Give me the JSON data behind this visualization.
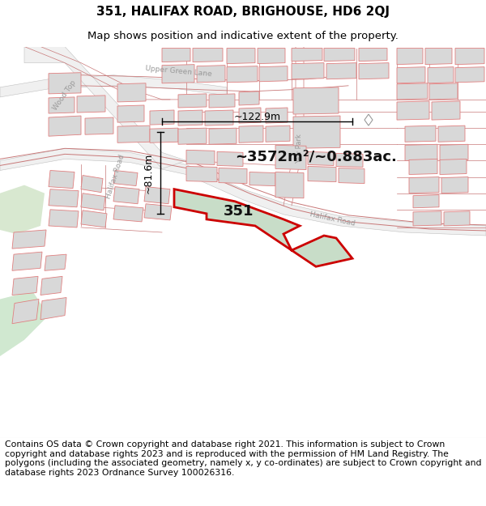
{
  "title_line1": "351, HALIFAX ROAD, BRIGHOUSE, HD6 2QJ",
  "title_line2": "Map shows position and indicative extent of the property.",
  "area_m2": "~3572m²/~0.883ac.",
  "label_351": "351",
  "dim_width": "~122.9m",
  "dim_height": "~81.6m",
  "footer_text": "Contains OS data © Crown copyright and database right 2021. This information is subject to Crown copyright and database rights 2023 and is reproduced with the permission of HM Land Registry. The polygons (including the associated geometry, namely x, y co-ordinates) are subject to Crown copyright and database rights 2023 Ordnance Survey 100026316.",
  "map_bg": "#ffffff",
  "building_fill": "#d8d8d8",
  "building_edge": "#e08080",
  "road_line_color": "#c87878",
  "green_fill": "#d0e8d0",
  "property_fill": "#c8ddc8",
  "property_edge": "#cc0000",
  "background_color": "#ffffff",
  "title_fontsize": 11,
  "subtitle_fontsize": 9.5,
  "footer_fontsize": 7.8,
  "dim_color": "#000000",
  "label_color": "#333333",
  "road_label_color": "#888888"
}
